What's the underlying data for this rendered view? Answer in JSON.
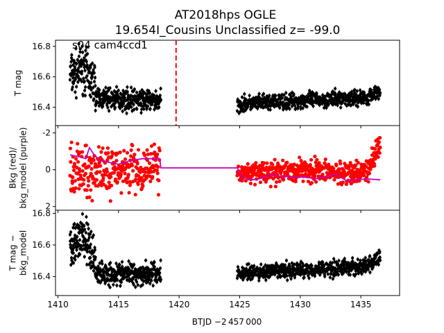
{
  "chart_data": {
    "type": "scatter",
    "title": "AT2018hps  OGLE",
    "subtitle": "19.654I_Cousins Unclassified z= -99.0",
    "xlabel": "BTJD −2 457 000",
    "xlim": [
      1409.8,
      1438.2
    ],
    "x_ticks": [
      1410,
      1415,
      1420,
      1425,
      1430,
      1435
    ],
    "colors": {
      "points": "#000000",
      "bkg": "#ff0000",
      "model": "#bf00bf",
      "marker": "#ff0000"
    },
    "panels": [
      {
        "ylabel": "T mag",
        "ylim": [
          16.84,
          16.28
        ],
        "y_ticks": [
          16.4,
          16.6,
          16.8
        ],
        "annotation": "s04 cam4ccd1",
        "vline_x": 1419.75,
        "segments": [
          {
            "x0": 1411.0,
            "x1": 1413.1,
            "y0": 16.62,
            "y1": 16.55,
            "scatter": 0.07,
            "n": 140,
            "dip": {
              "x": 1412.0,
              "y": 16.66
            }
          },
          {
            "x0": 1413.1,
            "x1": 1418.5,
            "y0": 16.46,
            "y1": 16.44,
            "scatter": 0.035,
            "n": 320
          },
          {
            "x0": 1424.8,
            "x1": 1436.6,
            "y0": 16.42,
            "y1": 16.47,
            "scatter": 0.025,
            "n": 620,
            "end_drop": 16.52
          }
        ]
      },
      {
        "ylabel": "Bkg (red)/\nbkg_model (purple)",
        "ylim": [
          -2.4,
          2.2
        ],
        "y_ticks": [
          -2,
          0,
          2
        ],
        "segments": [
          {
            "x0": 1411.0,
            "x1": 1418.4,
            "y0": 0.0,
            "y1": 0.0,
            "scatter": 0.65,
            "n": 300
          },
          {
            "x0": 1424.8,
            "x1": 1436.6,
            "y0": 0.1,
            "y1": 0.1,
            "scatter": 0.3,
            "n": 500,
            "end_drop": -1.5
          }
        ],
        "model_line": {
          "x": [
            1411.0,
            1411.8,
            1412.3,
            1412.6,
            1413.0,
            1413.5,
            1414.2,
            1415.0,
            1416.0,
            1417.0,
            1418.0,
            1418.4,
            1418.5,
            1424.8,
            1425.2,
            1426.0,
            1426.6,
            1427.5,
            1428.5,
            1429.5,
            1430.5,
            1431.2,
            1432.0,
            1433.0,
            1433.8,
            1434.5,
            1435.5,
            1436.6
          ],
          "y": [
            -0.8,
            -0.7,
            -0.6,
            -1.2,
            -0.8,
            -0.5,
            -0.4,
            -0.3,
            -0.5,
            -0.6,
            -0.6,
            -0.6,
            -0.1,
            -0.1,
            0.4,
            0.55,
            0.5,
            0.3,
            0.35,
            0.4,
            0.4,
            0.5,
            0.4,
            0.25,
            0.6,
            0.55,
            0.5,
            0.55
          ]
        }
      },
      {
        "ylabel": "T mag −\nbkg_model",
        "ylim": [
          16.82,
          16.28
        ],
        "y_ticks": [
          16.4,
          16.6,
          16.8
        ],
        "segments": [
          {
            "x0": 1411.0,
            "x1": 1413.1,
            "y0": 16.6,
            "y1": 16.53,
            "scatter": 0.07,
            "n": 140,
            "dip": {
              "x": 1412.0,
              "y": 16.66
            }
          },
          {
            "x0": 1413.1,
            "x1": 1418.5,
            "y0": 16.42,
            "y1": 16.42,
            "scatter": 0.035,
            "n": 320
          },
          {
            "x0": 1424.8,
            "x1": 1436.6,
            "y0": 16.42,
            "y1": 16.47,
            "scatter": 0.025,
            "n": 620,
            "end_drop": 16.52
          }
        ]
      }
    ]
  }
}
